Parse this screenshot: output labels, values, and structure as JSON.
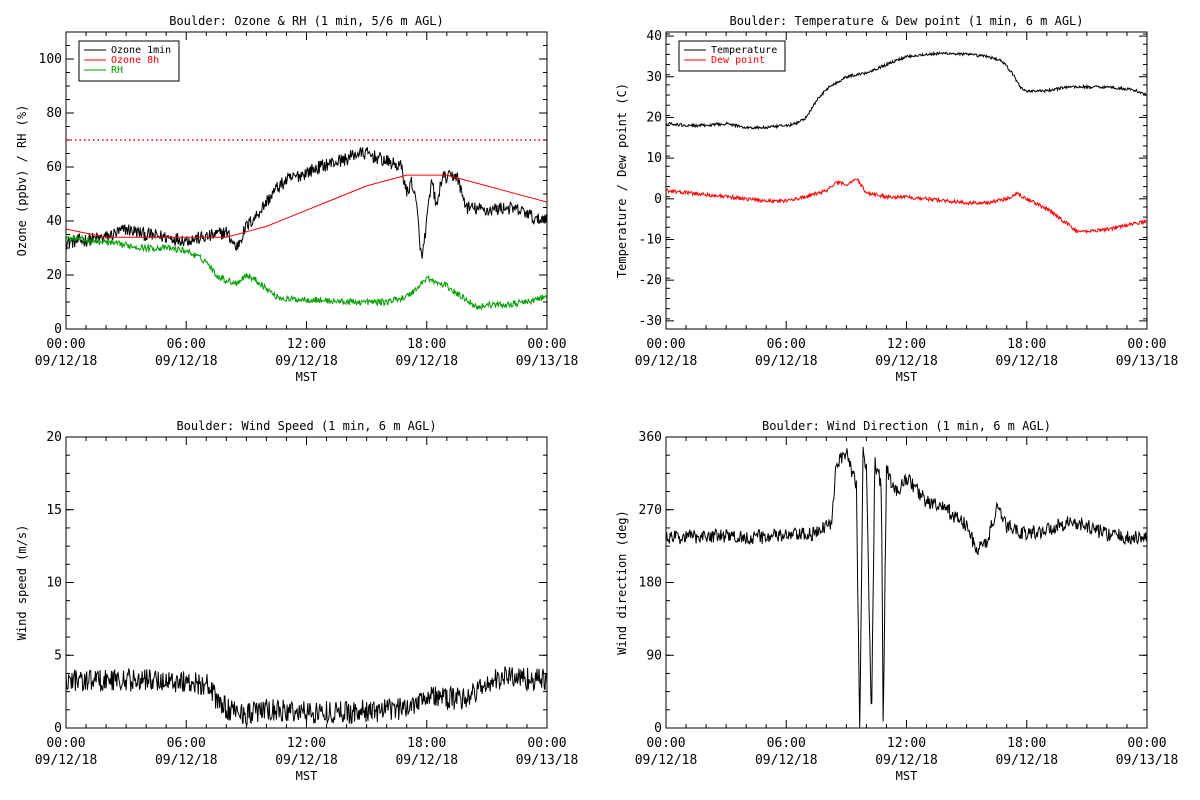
{
  "chart_data": [
    {
      "type": "line",
      "title": "Boulder: Ozone & RH (1 min, 5/6 m AGL)",
      "xlabel": "MST",
      "ylabel": "Ozone (ppbv) / RH (%)",
      "xlim": [
        "09/12/18 00:00",
        "09/13/18 00:00"
      ],
      "ylim": [
        0,
        110
      ],
      "yticks": [
        0,
        20,
        40,
        60,
        80,
        100
      ],
      "x_tick_labels": [
        [
          "00:00",
          "09/12/18"
        ],
        [
          "06:00",
          "09/12/18"
        ],
        [
          "12:00",
          "09/12/18"
        ],
        [
          "18:00",
          "09/12/18"
        ],
        [
          "00:00",
          "09/13/18"
        ]
      ],
      "legend": {
        "placement": "top-left"
      },
      "reference_lines": [
        {
          "y": 70,
          "style": "dotted",
          "color": "#ff0000"
        }
      ],
      "series": [
        {
          "name": "Ozone 1min",
          "color": "#000000",
          "noise": 2.5,
          "points": [
            [
              "00:00",
              32
            ],
            [
              "01:00",
              33
            ],
            [
              "02:00",
              34
            ],
            [
              "03:00",
              37
            ],
            [
              "04:00",
              35
            ],
            [
              "05:00",
              34
            ],
            [
              "06:00",
              33
            ],
            [
              "07:00",
              34
            ],
            [
              "08:00",
              36
            ],
            [
              "08:30",
              30
            ],
            [
              "09:00",
              38
            ],
            [
              "09:30",
              42
            ],
            [
              "10:00",
              47
            ],
            [
              "10:30",
              52
            ],
            [
              "11:00",
              55
            ],
            [
              "12:00",
              58
            ],
            [
              "13:00",
              61
            ],
            [
              "14:00",
              63
            ],
            [
              "14:30",
              65
            ],
            [
              "15:00",
              65
            ],
            [
              "16:00",
              62
            ],
            [
              "16:45",
              60
            ],
            [
              "17:00",
              50
            ],
            [
              "17:15",
              55
            ],
            [
              "17:30",
              45
            ],
            [
              "17:45",
              25
            ],
            [
              "18:00",
              40
            ],
            [
              "18:15",
              55
            ],
            [
              "18:30",
              45
            ],
            [
              "18:45",
              56
            ],
            [
              "19:00",
              56
            ],
            [
              "19:30",
              57
            ],
            [
              "19:45",
              50
            ],
            [
              "20:00",
              45
            ],
            [
              "21:00",
              44
            ],
            [
              "22:00",
              45
            ],
            [
              "23:00",
              43
            ],
            [
              "23:30",
              40
            ],
            [
              "24:00",
              42
            ]
          ]
        },
        {
          "name": "Ozone 8h",
          "color": "#ff0000",
          "noise": 0,
          "points": [
            [
              "00:00",
              37
            ],
            [
              "02:00",
              34
            ],
            [
              "04:00",
              34
            ],
            [
              "06:00",
              34
            ],
            [
              "07:00",
              34
            ],
            [
              "08:00",
              34
            ],
            [
              "09:00",
              36
            ],
            [
              "10:00",
              38
            ],
            [
              "11:00",
              41
            ],
            [
              "12:00",
              44
            ],
            [
              "13:00",
              47
            ],
            [
              "14:00",
              50
            ],
            [
              "15:00",
              53
            ],
            [
              "16:00",
              55
            ],
            [
              "17:00",
              57
            ],
            [
              "18:00",
              57
            ],
            [
              "19:00",
              57
            ],
            [
              "20:00",
              55
            ],
            [
              "21:00",
              53
            ],
            [
              "22:00",
              51
            ],
            [
              "23:00",
              49
            ],
            [
              "24:00",
              47
            ]
          ]
        },
        {
          "name": "RH",
          "color": "#00a000",
          "noise": 1.2,
          "points": [
            [
              "00:00",
              34
            ],
            [
              "01:00",
              33
            ],
            [
              "02:00",
              32
            ],
            [
              "03:00",
              31
            ],
            [
              "04:00",
              30
            ],
            [
              "05:00",
              30
            ],
            [
              "06:00",
              29
            ],
            [
              "06:30",
              27
            ],
            [
              "07:00",
              25
            ],
            [
              "07:30",
              20
            ],
            [
              "08:00",
              18
            ],
            [
              "08:30",
              17
            ],
            [
              "09:00",
              20
            ],
            [
              "09:30",
              18
            ],
            [
              "10:00",
              15
            ],
            [
              "10:30",
              12
            ],
            [
              "11:00",
              11
            ],
            [
              "12:00",
              11
            ],
            [
              "14:00",
              10
            ],
            [
              "16:00",
              10
            ],
            [
              "17:00",
              12
            ],
            [
              "17:30",
              15
            ],
            [
              "18:00",
              19
            ],
            [
              "18:30",
              17
            ],
            [
              "19:00",
              16
            ],
            [
              "19:30",
              13
            ],
            [
              "20:00",
              11
            ],
            [
              "20:30",
              8
            ],
            [
              "21:00",
              9
            ],
            [
              "22:00",
              9
            ],
            [
              "23:00",
              10
            ],
            [
              "24:00",
              12
            ]
          ]
        }
      ]
    },
    {
      "type": "line",
      "title": "Boulder: Temperature & Dew point (1 min, 6 m AGL)",
      "xlabel": "MST",
      "ylabel": "Temperature / Dew point (C)",
      "xlim": [
        "09/12/18 00:00",
        "09/13/18 00:00"
      ],
      "ylim": [
        -32,
        41
      ],
      "yticks": [
        -30,
        -20,
        -10,
        0,
        10,
        20,
        30,
        40
      ],
      "x_tick_labels": [
        [
          "00:00",
          "09/12/18"
        ],
        [
          "06:00",
          "09/12/18"
        ],
        [
          "12:00",
          "09/12/18"
        ],
        [
          "18:00",
          "09/12/18"
        ],
        [
          "00:00",
          "09/13/18"
        ]
      ],
      "legend": {
        "placement": "top-left"
      },
      "series": [
        {
          "name": "Temperature",
          "color": "#000000",
          "noise": 0.35,
          "points": [
            [
              "00:00",
              18.5
            ],
            [
              "01:00",
              18
            ],
            [
              "02:00",
              18
            ],
            [
              "03:00",
              18.5
            ],
            [
              "04:00",
              17.5
            ],
            [
              "05:00",
              17.5
            ],
            [
              "06:00",
              18
            ],
            [
              "06:30",
              18.5
            ],
            [
              "07:00",
              20
            ],
            [
              "07:30",
              24
            ],
            [
              "08:00",
              27
            ],
            [
              "09:00",
              30
            ],
            [
              "10:00",
              31
            ],
            [
              "11:00",
              33
            ],
            [
              "12:00",
              35
            ],
            [
              "13:00",
              35.5
            ],
            [
              "14:00",
              35.8
            ],
            [
              "15:00",
              35.5
            ],
            [
              "16:00",
              35
            ],
            [
              "16:45",
              34
            ],
            [
              "17:15",
              31
            ],
            [
              "17:45",
              27
            ],
            [
              "18:00",
              26.5
            ],
            [
              "19:00",
              26.5
            ],
            [
              "20:00",
              27.5
            ],
            [
              "21:00",
              27.5
            ],
            [
              "22:00",
              27.5
            ],
            [
              "23:00",
              27
            ],
            [
              "23:30",
              26.5
            ],
            [
              "24:00",
              25.5
            ]
          ]
        },
        {
          "name": "Dew point",
          "color": "#ff0000",
          "noise": 0.45,
          "points": [
            [
              "00:00",
              2
            ],
            [
              "01:00",
              1.5
            ],
            [
              "02:00",
              1
            ],
            [
              "03:00",
              0.5
            ],
            [
              "04:00",
              0
            ],
            [
              "05:00",
              -0.5
            ],
            [
              "06:00",
              -0.5
            ],
            [
              "07:00",
              0.5
            ],
            [
              "08:00",
              2
            ],
            [
              "08:30",
              4
            ],
            [
              "09:00",
              3.5
            ],
            [
              "09:30",
              5
            ],
            [
              "10:00",
              1.5
            ],
            [
              "11:00",
              0.5
            ],
            [
              "12:00",
              0.5
            ],
            [
              "13:00",
              0
            ],
            [
              "14:00",
              -0.5
            ],
            [
              "15:00",
              -1
            ],
            [
              "16:00",
              -1
            ],
            [
              "17:00",
              0
            ],
            [
              "17:30",
              1.5
            ],
            [
              "18:00",
              0
            ],
            [
              "19:00",
              -2.5
            ],
            [
              "20:00",
              -6
            ],
            [
              "20:30",
              -8
            ],
            [
              "21:00",
              -8
            ],
            [
              "22:00",
              -7.5
            ],
            [
              "23:00",
              -6.5
            ],
            [
              "24:00",
              -5.5
            ]
          ]
        }
      ]
    },
    {
      "type": "line",
      "title": "Boulder: Wind Speed (1 min, 6 m AGL)",
      "xlabel": "MST",
      "ylabel": "Wind speed (m/s)",
      "xlim": [
        "09/12/18 00:00",
        "09/13/18 00:00"
      ],
      "ylim": [
        0,
        20
      ],
      "yticks": [
        0,
        5,
        10,
        15,
        20
      ],
      "x_tick_labels": [
        [
          "00:00",
          "09/12/18"
        ],
        [
          "06:00",
          "09/12/18"
        ],
        [
          "12:00",
          "09/12/18"
        ],
        [
          "18:00",
          "09/12/18"
        ],
        [
          "00:00",
          "09/13/18"
        ]
      ],
      "legend": null,
      "series": [
        {
          "color": "#000000",
          "noise": 0.8,
          "points": [
            [
              "00:00",
              3.3
            ],
            [
              "02:00",
              3.3
            ],
            [
              "04:00",
              3.3
            ],
            [
              "06:00",
              3.2
            ],
            [
              "07:00",
              3.0
            ],
            [
              "07:30",
              2.0
            ],
            [
              "08:00",
              1.3
            ],
            [
              "09:00",
              1.0
            ],
            [
              "10:00",
              1.2
            ],
            [
              "12:00",
              1.1
            ],
            [
              "14:00",
              1.1
            ],
            [
              "16:00",
              1.2
            ],
            [
              "17:00",
              1.4
            ],
            [
              "17:30",
              1.9
            ],
            [
              "18:00",
              2.3
            ],
            [
              "19:00",
              2.0
            ],
            [
              "20:00",
              2.1
            ],
            [
              "21:00",
              3.0
            ],
            [
              "22:00",
              3.6
            ],
            [
              "23:00",
              3.4
            ],
            [
              "24:00",
              3.3
            ]
          ]
        }
      ]
    },
    {
      "type": "line",
      "title": "Boulder: Wind Direction (1 min, 6 m AGL)",
      "xlabel": "MST",
      "ylabel": "Wind direction (deg)",
      "xlim": [
        "09/12/18 00:00",
        "09/13/18 00:00"
      ],
      "ylim": [
        0,
        360
      ],
      "yticks": [
        0,
        90,
        180,
        270,
        360
      ],
      "x_tick_labels": [
        [
          "00:00",
          "09/12/18"
        ],
        [
          "06:00",
          "09/12/18"
        ],
        [
          "12:00",
          "09/12/18"
        ],
        [
          "18:00",
          "09/12/18"
        ],
        [
          "00:00",
          "09/13/18"
        ]
      ],
      "legend": null,
      "series": [
        {
          "color": "#000000",
          "noise": 9,
          "points": [
            [
              "00:00",
              235
            ],
            [
              "02:00",
              238
            ],
            [
              "04:00",
              236
            ],
            [
              "06:00",
              238
            ],
            [
              "07:30",
              240
            ],
            [
              "08:15",
              255
            ],
            [
              "08:30",
              330
            ],
            [
              "09:00",
              340
            ],
            [
              "09:30",
              300
            ],
            [
              "09:40",
              0
            ],
            [
              "09:50",
              340
            ],
            [
              "10:00",
              320
            ],
            [
              "10:15",
              0
            ],
            [
              "10:25",
              330
            ],
            [
              "10:45",
              300
            ],
            [
              "10:50",
              0
            ],
            [
              "11:00",
              320
            ],
            [
              "11:30",
              290
            ],
            [
              "12:00",
              310
            ],
            [
              "13:00",
              280
            ],
            [
              "14:00",
              270
            ],
            [
              "15:00",
              250
            ],
            [
              "15:30",
              220
            ],
            [
              "16:00",
              230
            ],
            [
              "16:30",
              270
            ],
            [
              "17:00",
              250
            ],
            [
              "17:30",
              245
            ],
            [
              "18:00",
              240
            ],
            [
              "19:00",
              245
            ],
            [
              "20:00",
              255
            ],
            [
              "21:00",
              250
            ],
            [
              "22:00",
              240
            ],
            [
              "23:00",
              235
            ],
            [
              "24:00",
              235
            ]
          ]
        }
      ]
    }
  ]
}
